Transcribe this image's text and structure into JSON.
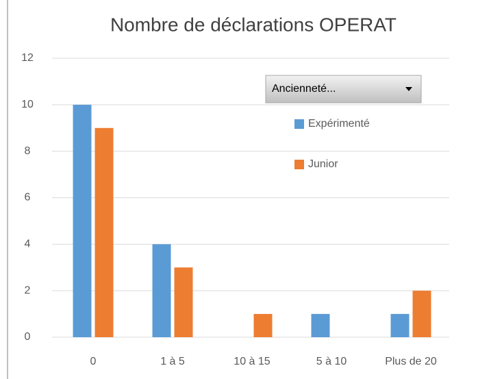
{
  "chart_data": {
    "type": "bar",
    "title": "Nombre de déclarations OPERAT",
    "filter_button": "Ancienneté...",
    "categories": [
      "0",
      "1 à 5",
      "10 à 15",
      "5 à 10",
      "Plus de 20"
    ],
    "series": [
      {
        "name": "Expérimenté",
        "color": "#5b9bd5",
        "values": [
          10,
          4,
          null,
          1,
          1
        ]
      },
      {
        "name": "Junior",
        "color": "#ed7d31",
        "values": [
          9,
          3,
          1,
          null,
          2
        ]
      }
    ],
    "ylim": [
      0,
      12
    ],
    "yticks": [
      0,
      2,
      4,
      6,
      8,
      10,
      12
    ],
    "grid": true,
    "legend": "right"
  }
}
